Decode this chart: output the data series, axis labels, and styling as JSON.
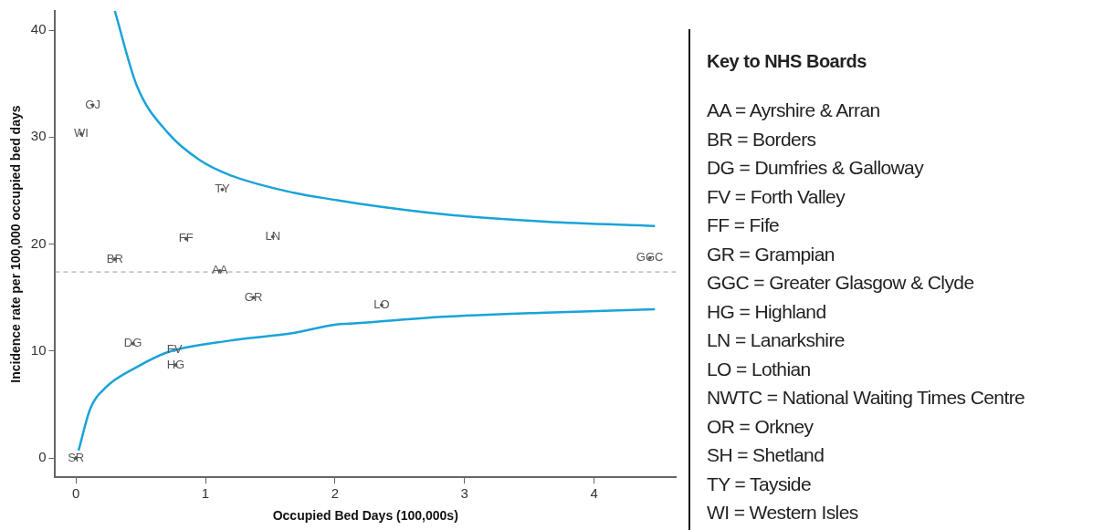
{
  "chart_data": [
    {
      "type": "scatter",
      "xlabel": "Occupied Bed Days (100,000s)",
      "ylabel": "Incidence rate per 100,000 occupied bed days",
      "xlim": [
        -0.16,
        4.63
      ],
      "ylim": [
        -1.8,
        41.8
      ],
      "xticks": [
        0,
        1,
        2,
        3,
        4
      ],
      "yticks": [
        0,
        10,
        20,
        30,
        40
      ],
      "grid": false,
      "legend": false,
      "marker": "circle",
      "ref_lines": [
        {
          "axis": "y",
          "value": 17.4,
          "color": "#999999",
          "line_style": "dashed"
        }
      ],
      "series": [
        {
          "type": "line",
          "marker": "none",
          "color": "#1aa3d9",
          "x": [
            0.3,
            0.47,
            0.71,
            0.95,
            1.2,
            1.68,
            2.02,
            2.17,
            2.83,
            3.63,
            4.47
          ],
          "values": [
            41.8,
            34.8,
            30.4,
            27.9,
            26.4,
            24.8,
            24.1,
            23.8,
            22.8,
            22.1,
            21.7
          ]
        },
        {
          "type": "line",
          "marker": "none",
          "color": "#1aa3d9",
          "x": [
            0.02,
            0.11,
            0.23,
            0.47,
            0.71,
            1.2,
            1.68,
            2.02,
            2.17,
            2.83,
            3.63,
            4.47
          ],
          "values": [
            0.7,
            4.6,
            6.6,
            8.5,
            9.9,
            11.0,
            11.7,
            12.5,
            12.6,
            13.2,
            13.6,
            13.9
          ]
        },
        {
          "type": "scatter",
          "color": "#555555",
          "x": [
            0.13,
            0.04,
            1.13,
            0.85,
            1.52,
            0.3,
            1.11,
            1.37,
            2.36,
            0.44,
            0.76,
            0.77,
            4.43,
            0.0
          ],
          "values": [
            33.0,
            30.3,
            25.1,
            20.5,
            20.7,
            18.6,
            17.5,
            15.0,
            14.3,
            10.7,
            10.1,
            8.7,
            18.7,
            0.0
          ],
          "value_labels": [
            "GJ",
            "WI",
            "TY",
            "FF",
            "LN",
            "BR",
            "AA",
            "GR",
            "LO",
            "DG",
            "FV",
            "HG",
            "GGC",
            "SR"
          ]
        }
      ]
    },
    {
      "type": "other",
      "title": "Key to NHS Boards",
      "annotations": [
        "AA = Ayrshire & Arran",
        "BR = Borders",
        "DG = Dumfries & Galloway",
        "FV = Forth Valley",
        "FF = Fife",
        "GR = Grampian",
        "GGC = Greater Glasgow & Clyde",
        "HG = Highland",
        "LN = Lanarkshire",
        "LO = Lothian",
        "NWTC = National Waiting Times Centre",
        "OR = Orkney",
        "SH = Shetland",
        "TY = Tayside",
        "WI = Western Isles"
      ]
    }
  ]
}
